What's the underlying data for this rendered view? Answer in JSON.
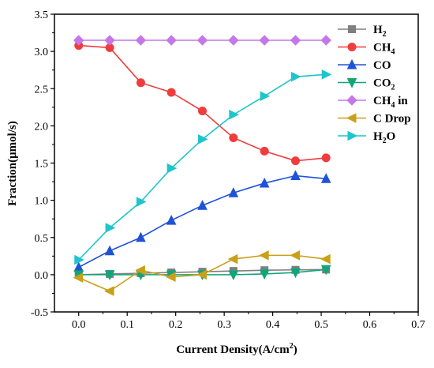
{
  "chart_data": {
    "type": "line",
    "title": "",
    "xlabel": "Current Density(A/cm",
    "xlabel_sup": "2",
    "xlabel_suffix": ")",
    "ylabel": "Fraction(μmol/s)",
    "xlim": [
      -0.05,
      0.7
    ],
    "ylim": [
      -0.5,
      3.5
    ],
    "x_ticks": [
      "0.0",
      "0.1",
      "0.2",
      "0.3",
      "0.4",
      "0.5",
      "0.6",
      "0.7"
    ],
    "y_ticks": [
      "-0.5",
      "0.0",
      "0.5",
      "1.0",
      "1.5",
      "2.0",
      "2.5",
      "3.0",
      "3.5"
    ],
    "x_tick_values": [
      0.0,
      0.1,
      0.2,
      0.3,
      0.4,
      0.5,
      0.6,
      0.7
    ],
    "y_tick_values": [
      -0.5,
      0.0,
      0.5,
      1.0,
      1.5,
      2.0,
      2.5,
      3.0,
      3.5
    ],
    "grid": false,
    "legend_position": "top-right",
    "x": [
      0.0,
      0.064,
      0.128,
      0.191,
      0.255,
      0.319,
      0.383,
      0.447,
      0.51
    ],
    "series": [
      {
        "name": "H",
        "name_sub": "2",
        "marker": "square",
        "color": "#7f7f7f",
        "values": [
          0.0,
          0.01,
          0.02,
          0.03,
          0.04,
          0.05,
          0.06,
          0.065,
          0.07
        ]
      },
      {
        "name": "CH",
        "name_sub": "4",
        "marker": "circle",
        "color": "#f03c3c",
        "values": [
          3.08,
          3.05,
          2.58,
          2.45,
          2.2,
          1.84,
          1.66,
          1.53,
          1.57
        ]
      },
      {
        "name": "CO",
        "name_sub": "",
        "marker": "triangle-up",
        "color": "#2052d8",
        "values": [
          0.1,
          0.32,
          0.5,
          0.73,
          0.93,
          1.1,
          1.23,
          1.33,
          1.29
        ]
      },
      {
        "name": "CO",
        "name_sub": "2",
        "marker": "triangle-down",
        "color": "#11a57a",
        "values": [
          0.0,
          0.0,
          0.0,
          0.0,
          0.0,
          0.0,
          0.01,
          0.03,
          0.07
        ]
      },
      {
        "name": "CH",
        "name_sub": "4",
        "name_suffix": " in",
        "marker": "diamond",
        "color": "#c577e8",
        "values": [
          3.15,
          3.15,
          3.15,
          3.15,
          3.15,
          3.15,
          3.15,
          3.15,
          3.15
        ]
      },
      {
        "name": "C Drop",
        "name_sub": "",
        "marker": "triangle-left",
        "color": "#c9a018",
        "values": [
          -0.04,
          -0.22,
          0.06,
          -0.03,
          0.0,
          0.21,
          0.26,
          0.26,
          0.21
        ]
      },
      {
        "name": "H",
        "name_sub": "2",
        "name_suffix": "O",
        "marker": "triangle-right",
        "color": "#1ec5cc",
        "values": [
          0.2,
          0.63,
          0.98,
          1.43,
          1.82,
          2.15,
          2.4,
          2.66,
          2.69
        ]
      }
    ]
  }
}
